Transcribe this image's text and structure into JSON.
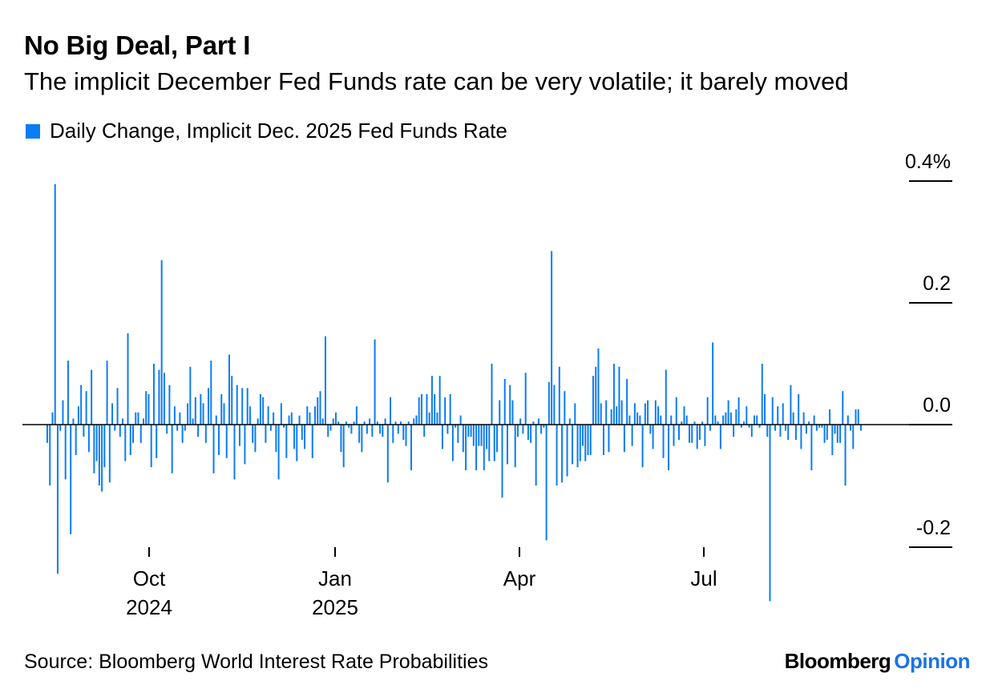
{
  "title": "No Big Deal, Part I",
  "subtitle": "The implicit December Fed Funds rate can be very volatile; it barely moved",
  "legend": {
    "label": "Daily Change, Implicit Dec. 2025 Fed Funds Rate",
    "color": "#0a7cf4"
  },
  "source": "Source: Bloomberg World Interest Rate Probabilities",
  "brand": {
    "part1": "Bloomberg",
    "part2": "Opinion",
    "accent": "#1a73e8"
  },
  "chart_data": {
    "type": "bar",
    "title": "No Big Deal, Part I",
    "series": [
      {
        "name": "Daily Change, Implicit Dec. 2025 Fed Funds Rate",
        "color": "#0a7cf4",
        "values": [
          -0.03,
          -0.1,
          0.02,
          0.395,
          -0.245,
          -0.01,
          0.04,
          -0.09,
          0.105,
          -0.18,
          0.01,
          -0.05,
          0.03,
          0.065,
          -0.02,
          0.055,
          -0.045,
          0.09,
          -0.08,
          -0.06,
          -0.1,
          -0.11,
          -0.07,
          0.105,
          -0.095,
          0.035,
          -0.01,
          0.06,
          -0.02,
          0.01,
          -0.06,
          0.15,
          -0.05,
          -0.03,
          0.02,
          0.02,
          -0.03,
          0.01,
          0.055,
          0.05,
          -0.07,
          0.1,
          -0.055,
          0.09,
          0.27,
          0.085,
          -0.015,
          0.065,
          -0.08,
          0.03,
          -0.01,
          0.02,
          -0.03,
          -0.01,
          0.035,
          0.095,
          0.01,
          0.045,
          -0.02,
          0.05,
          0.035,
          -0.03,
          0.06,
          0.105,
          -0.08,
          0.015,
          -0.05,
          0.05,
          0.035,
          -0.055,
          0.115,
          0.08,
          -0.09,
          0.065,
          -0.035,
          0.06,
          -0.065,
          0.06,
          0.03,
          -0.03,
          -0.045,
          0.01,
          0.05,
          0.045,
          -0.03,
          0.03,
          -0.01,
          0.02,
          -0.045,
          -0.09,
          0.035,
          -0.005,
          -0.055,
          0.015,
          0.02,
          -0.04,
          -0.06,
          0.015,
          -0.025,
          -0.04,
          0.03,
          0.02,
          -0.055,
          0.03,
          0.045,
          0.055,
          0.01,
          0.145,
          -0.02,
          -0.01,
          0.01,
          0.02,
          0.005,
          -0.045,
          -0.07,
          0.005,
          -0.005,
          -0.015,
          0.005,
          0.03,
          -0.03,
          -0.045,
          0.005,
          -0.015,
          0.01,
          -0.02,
          0.14,
          0.005,
          -0.015,
          -0.02,
          0.01,
          -0.095,
          0.045,
          -0.03,
          0.005,
          -0.015,
          0.005,
          -0.025,
          -0.035,
          0.005,
          -0.075,
          0.01,
          0.015,
          0.045,
          0.05,
          -0.02,
          0.05,
          0.02,
          0.08,
          0.05,
          0.02,
          0.08,
          -0.04,
          0.045,
          -0.015,
          0.05,
          -0.06,
          -0.005,
          -0.03,
          0.015,
          -0.045,
          -0.075,
          -0.02,
          -0.02,
          -0.035,
          -0.075,
          -0.035,
          -0.035,
          -0.075,
          -0.04,
          -0.06,
          0.1,
          -0.06,
          -0.045,
          0.04,
          -0.12,
          0.075,
          -0.065,
          0.065,
          0.04,
          -0.07,
          -0.02,
          0.01,
          -0.015,
          0.085,
          -0.025,
          -0.03,
          0.005,
          -0.1,
          0.01,
          -0.015,
          -0.005,
          -0.19,
          0.07,
          0.285,
          0.065,
          -0.1,
          0.095,
          -0.095,
          0.055,
          -0.085,
          0.01,
          -0.065,
          0.035,
          -0.07,
          -0.06,
          -0.035,
          -0.06,
          -0.05,
          -0.05,
          0.08,
          0.095,
          0.125,
          0.035,
          -0.05,
          0.04,
          -0.045,
          0.025,
          0.1,
          0.03,
          0.095,
          0.04,
          -0.045,
          0.075,
          0.015,
          -0.035,
          0.035,
          0.02,
          0.015,
          -0.07,
          0.035,
          0.04,
          -0.015,
          -0.04,
          0.04,
          0.03,
          0.015,
          -0.055,
          0.09,
          -0.075,
          0.015,
          -0.035,
          0.045,
          -0.025,
          0.005,
          0.03,
          0.015,
          -0.03,
          -0.03,
          0.005,
          -0.04,
          -0.025,
          0.005,
          -0.035,
          0.045,
          -0.01,
          0.135,
          0.015,
          0.005,
          -0.04,
          0.015,
          0.02,
          0.04,
          0.02,
          -0.02,
          0.025,
          0.045,
          -0.005,
          0.005,
          0.03,
          -0.005,
          -0.02,
          0.015,
          0.015,
          -0.005,
          0.1,
          0.05,
          -0.02,
          -0.29,
          0.045,
          -0.01,
          0.03,
          -0.02,
          0.035,
          -0.01,
          -0.025,
          0.065,
          0.02,
          -0.025,
          0.05,
          -0.04,
          0.02,
          -0.015,
          0.005,
          -0.075,
          0.015,
          -0.01,
          -0.005,
          -0.005,
          -0.03,
          -0.025,
          0.025,
          -0.05,
          -0.015,
          -0.03,
          -0.03,
          0.055,
          -0.1,
          0.015,
          -0.01,
          -0.04,
          0.025,
          0.025,
          -0.01
        ]
      }
    ],
    "x_ticks": [
      {
        "label": "Oct",
        "sub": "2024"
      },
      {
        "label": "Jan",
        "sub": "2025"
      },
      {
        "label": "Apr",
        "sub": ""
      },
      {
        "label": "Jul",
        "sub": ""
      }
    ],
    "y_ticks": [
      "0.4%",
      "0.2",
      "0.0",
      "-0.2"
    ],
    "ylim": [
      -0.3,
      0.42
    ],
    "grid": false,
    "legend_position": "top-left"
  }
}
